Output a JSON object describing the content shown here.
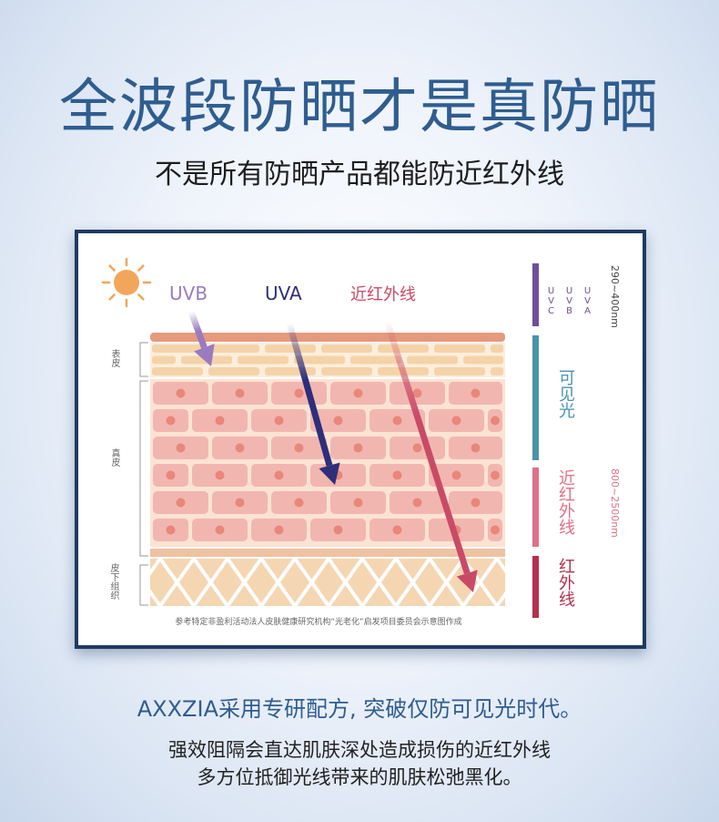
{
  "title": "全波段防晒才是真防晒",
  "subtitle": "不是所有防晒产品都能防近红外线",
  "diagram": {
    "rays": [
      "UVB",
      "UVA",
      "近红外线"
    ],
    "layers": [
      "表皮",
      "真皮",
      "皮下组织"
    ],
    "source_note": "参考特定非盈利活动法人皮肤健康研究机构“光老化”启发项目委员会示意图作成",
    "spectrum": {
      "uv_labels": [
        "UVC",
        "UVB",
        "UVA"
      ],
      "uv_range": "290~400nm",
      "visible": "可见光",
      "near_ir": "近红外线",
      "near_ir_range": "800~2500nm",
      "ir": "红外线"
    },
    "colors": {
      "uvb": "#9a7bbf",
      "uva": "#2e2f7a",
      "nir": "#c94a66",
      "uv_bar": "#6f4e9c",
      "visible_bar": "#4a93ad",
      "nir_bar": "#e07088",
      "ir_bar": "#b3304e"
    }
  },
  "footer": {
    "headline": "AXXZIA采用专研配方, 突破仅防可见光时代。",
    "line1": "强效阻隔会直达肌肤深处造成损伤的近红外线",
    "line2": "多方位抵御光线带来的肌肤松弛黑化。"
  }
}
